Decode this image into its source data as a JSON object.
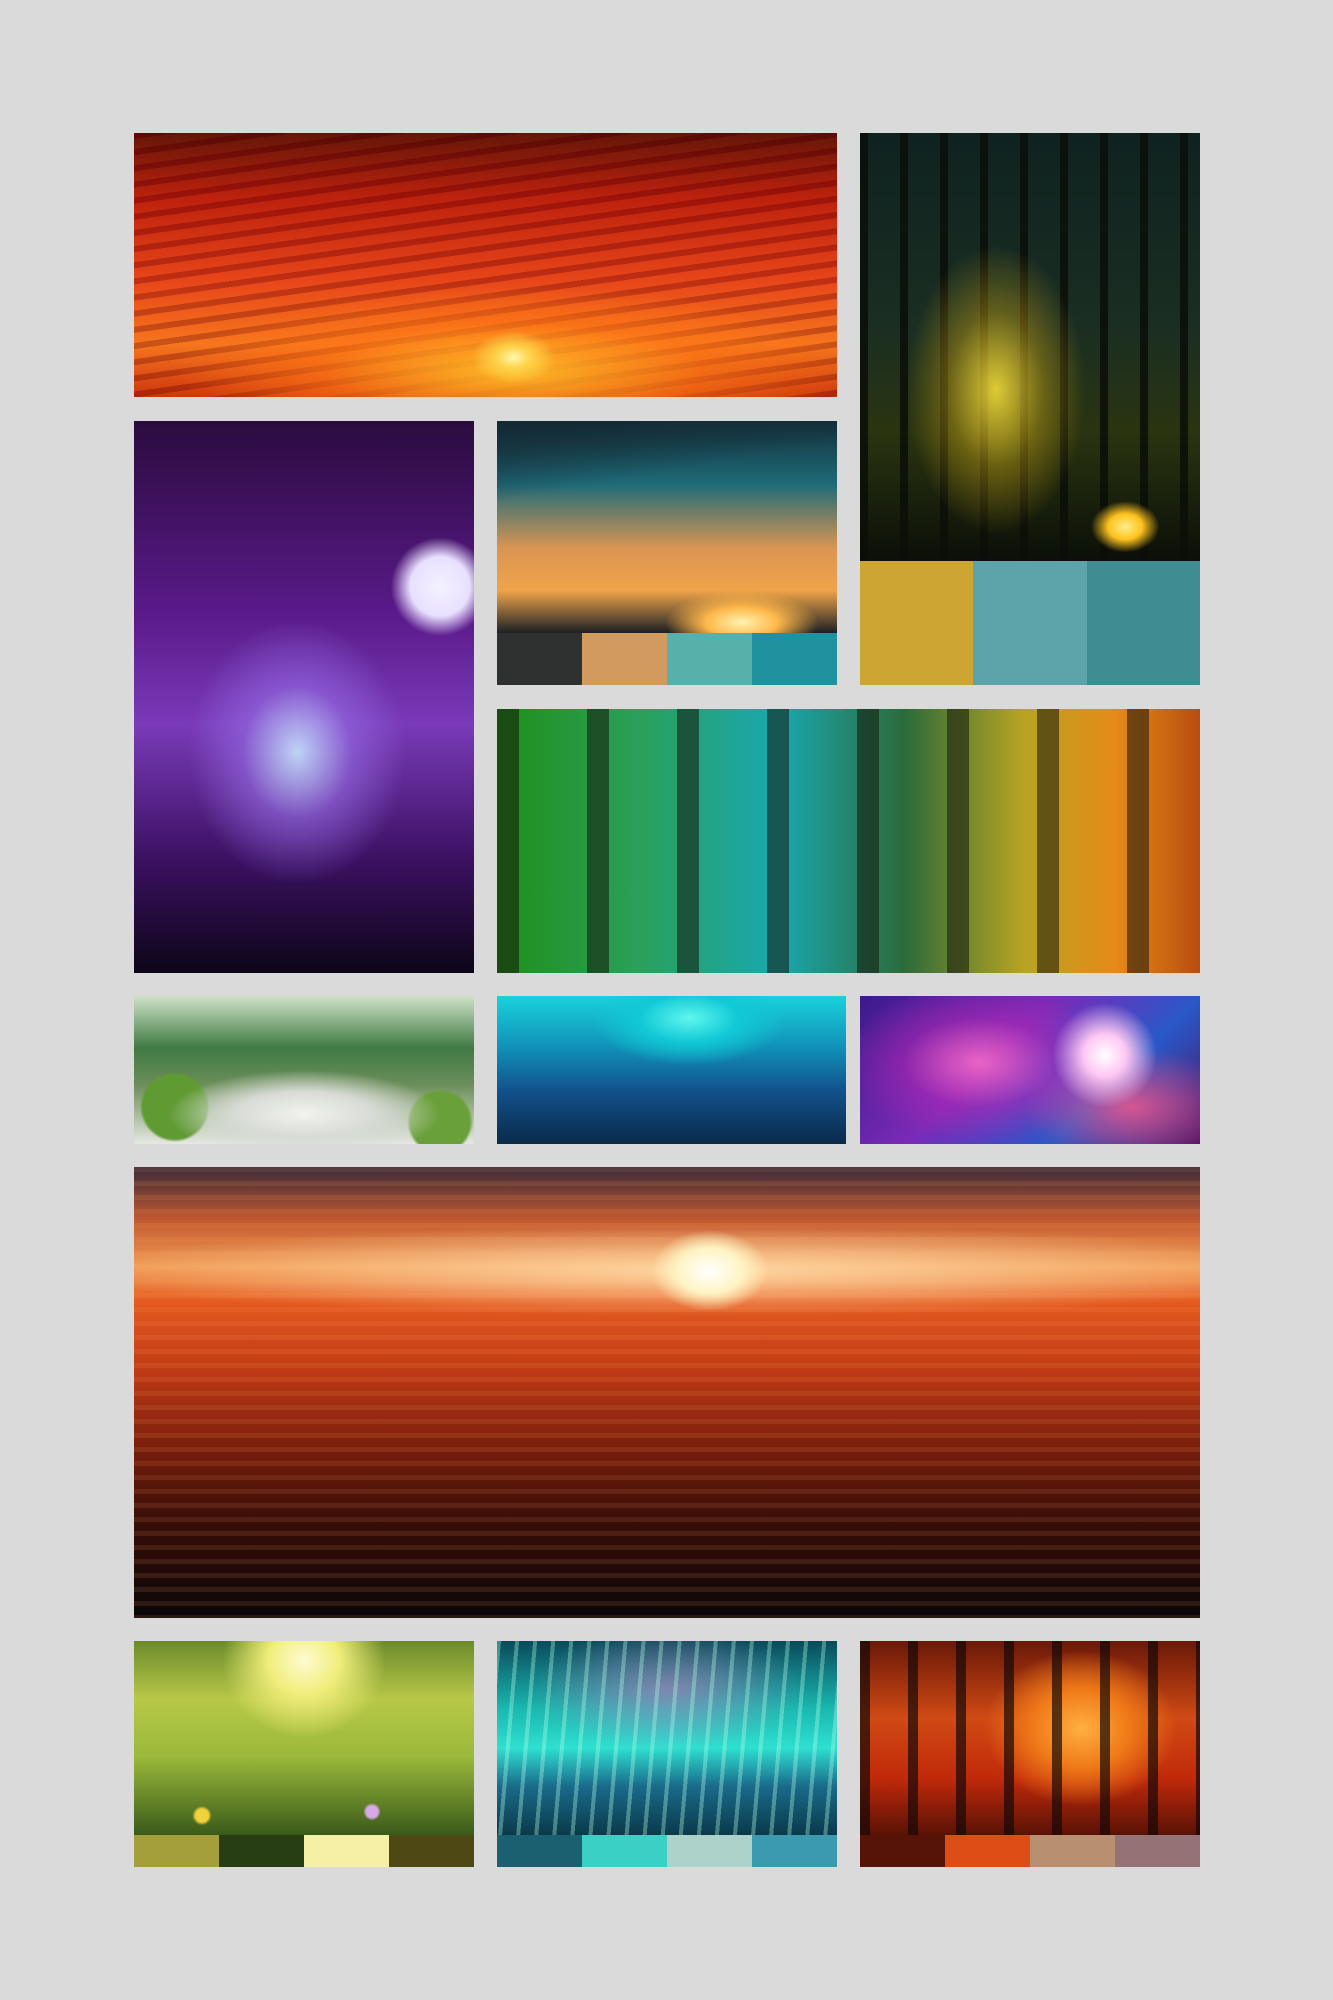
{
  "tiles": [
    {
      "name": "fiery-sunset-sky",
      "palette": []
    },
    {
      "name": "glowing-forest-night",
      "palette": [
        "#cda533",
        "#5da4aa",
        "#3f8c92"
      ]
    },
    {
      "name": "purple-moonlit-forest",
      "palette": []
    },
    {
      "name": "teal-orange-sunset",
      "palette": [
        "#2f3030",
        "#d39a5f",
        "#58b0ab",
        "#1f929f"
      ]
    },
    {
      "name": "rainbow-forest",
      "palette": []
    },
    {
      "name": "zen-garden-path",
      "palette": []
    },
    {
      "name": "cyan-valley",
      "palette": []
    },
    {
      "name": "pink-nebula",
      "palette": []
    },
    {
      "name": "red-horizon-sunset",
      "palette": []
    },
    {
      "name": "sunlit-meadow",
      "palette": [
        "#a49f3a",
        "#273e15",
        "#f5f0a5",
        "#4e4814"
      ]
    },
    {
      "name": "aurora-lake",
      "palette": [
        "#1b6070",
        "#3bd0c5",
        "#acd2ca",
        "#3c9ab0"
      ]
    },
    {
      "name": "autumn-fire-forest",
      "palette": [
        "#561408",
        "#dd4e17",
        "#b89070",
        "#957275"
      ]
    }
  ]
}
